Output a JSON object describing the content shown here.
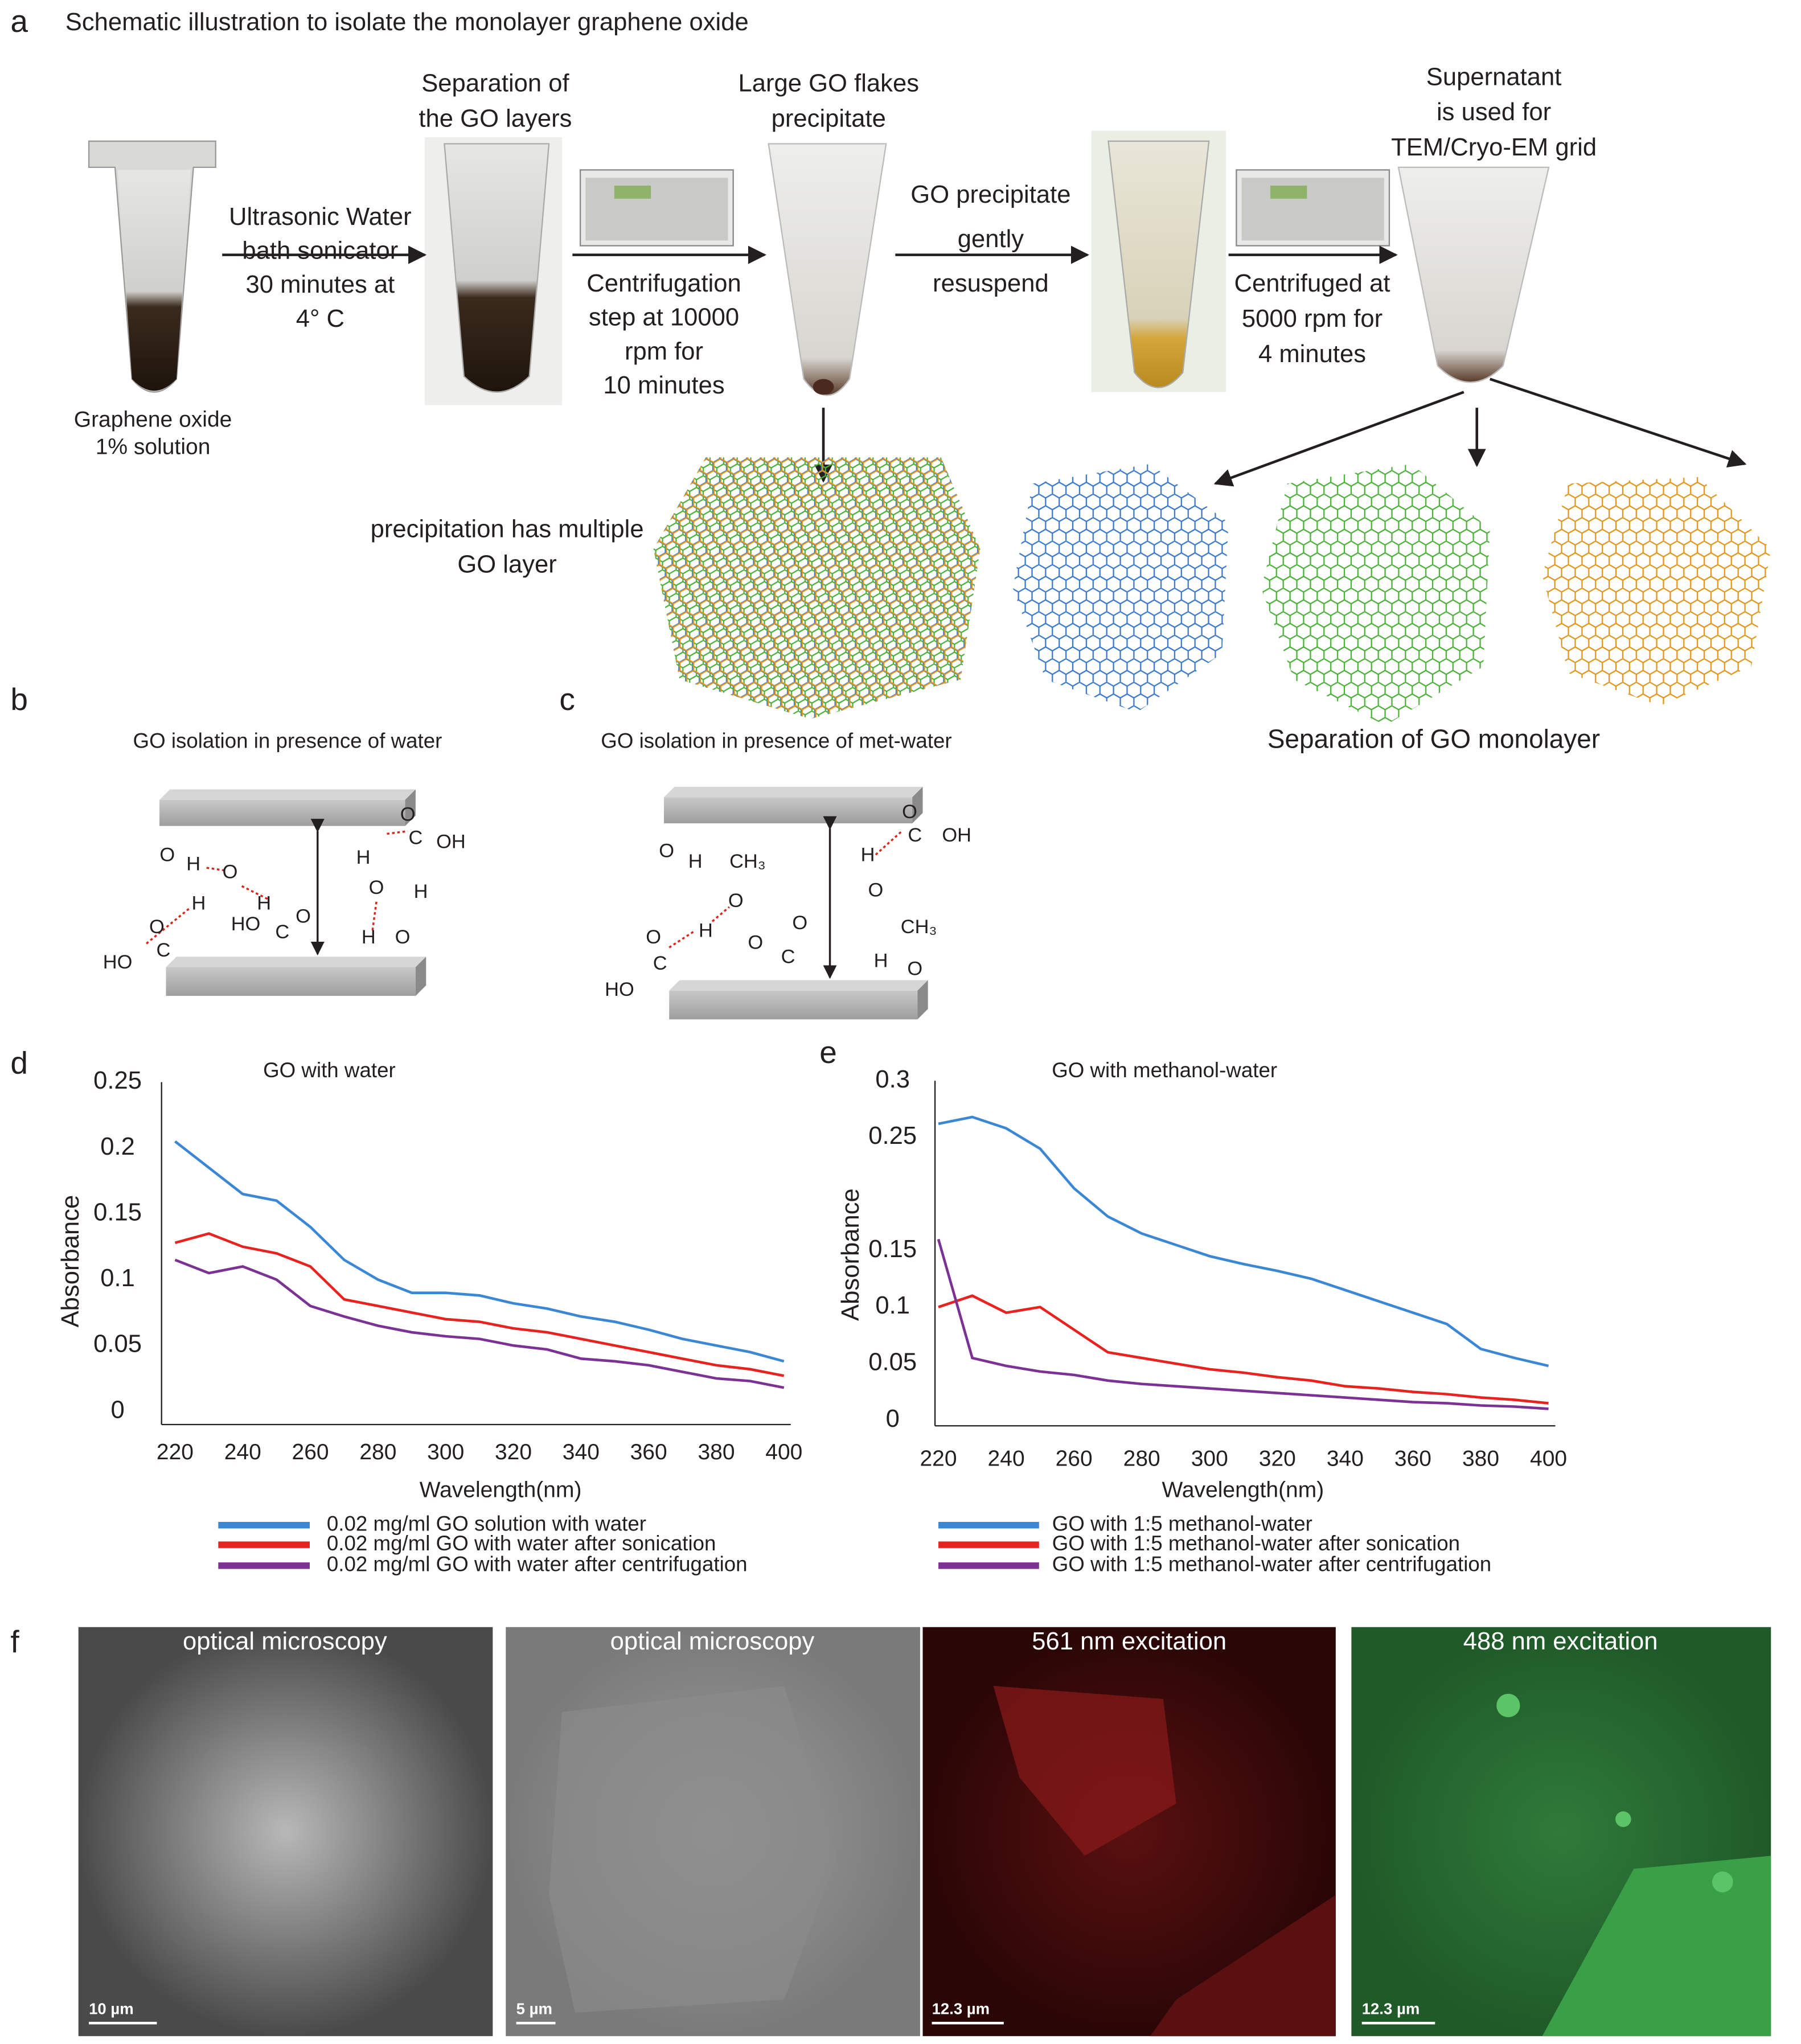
{
  "panel_labels": [
    "a",
    "b",
    "c",
    "d",
    "e",
    "f"
  ],
  "a": {
    "title": "Schematic illustration to isolate the monolayer graphene oxide",
    "tube1_caption": [
      "Graphene oxide",
      "1% solution"
    ],
    "step1": [
      "Ultrasonic Water",
      "bath sonicator",
      "30 minutes at",
      "4° C"
    ],
    "tube2_caption": [
      "Separation of",
      "the GO layers"
    ],
    "step2": [
      "Centrifugation",
      "step at 10000",
      "rpm for",
      "10 minutes"
    ],
    "tube3_caption": [
      "Large GO flakes",
      "precipitate"
    ],
    "step3": [
      "GO precipitate",
      "gently",
      "resuspend"
    ],
    "step4": [
      "Centrifuged at",
      "5000 rpm for",
      "4 minutes"
    ],
    "tube5_caption": [
      "Supernatant",
      "is used for",
      "TEM/Cryo-EM grid"
    ],
    "multilayer_caption": [
      "precipitation has multiple",
      "GO layer"
    ],
    "monolayer_caption": "Separation of GO monolayer"
  },
  "b": {
    "title": "GO isolation in presence of water",
    "atoms": [
      "O",
      "H",
      "O",
      "H",
      "H",
      "HO",
      "C",
      "O",
      "C",
      "O",
      "HO",
      "C",
      "O",
      "OH",
      "H",
      "O",
      "H",
      "H",
      "O"
    ]
  },
  "c": {
    "title": "GO isolation in presence of met-water",
    "atoms": [
      "O",
      "H",
      "CH₃",
      "O",
      "H",
      "O",
      "C",
      "O",
      "C",
      "O",
      "HO",
      "C",
      "O",
      "OH",
      "H",
      "O",
      "CH₃",
      "H",
      "O"
    ]
  },
  "chart_data": [
    {
      "type": "line",
      "title": "GO with water",
      "xlabel": "Wavelength(nm)",
      "ylabel": "Absorbance",
      "x": [
        220,
        230,
        240,
        250,
        260,
        270,
        280,
        290,
        300,
        310,
        320,
        330,
        340,
        350,
        360,
        370,
        380,
        390,
        400
      ],
      "xlim": [
        216,
        402
      ],
      "xticks": [
        220,
        240,
        260,
        280,
        300,
        320,
        340,
        360,
        380,
        400
      ],
      "ylim": [
        -0.01,
        0.25
      ],
      "yticks": [
        0,
        0.05,
        0.1,
        0.15,
        0.2,
        0.25
      ],
      "series": [
        {
          "name": "0.02 mg/ml GO solution with water",
          "color": "#3a87d6",
          "values": [
            0.205,
            0.185,
            0.165,
            0.16,
            0.14,
            0.115,
            0.1,
            0.09,
            0.09,
            0.088,
            0.082,
            0.078,
            0.072,
            0.068,
            0.062,
            0.055,
            0.05,
            0.045,
            0.038
          ]
        },
        {
          "name": "0.02 mg/ml GO with water after sonication",
          "color": "#e8231f",
          "values": [
            0.128,
            0.135,
            0.125,
            0.12,
            0.11,
            0.085,
            0.08,
            0.075,
            0.07,
            0.068,
            0.063,
            0.06,
            0.055,
            0.05,
            0.045,
            0.04,
            0.035,
            0.032,
            0.027
          ]
        },
        {
          "name": "0.02 mg/ml GO with water after centrifugation",
          "color": "#7b3294",
          "values": [
            0.115,
            0.105,
            0.11,
            0.1,
            0.08,
            0.072,
            0.065,
            0.06,
            0.057,
            0.055,
            0.05,
            0.047,
            0.04,
            0.038,
            0.035,
            0.03,
            0.025,
            0.023,
            0.018
          ]
        }
      ]
    },
    {
      "type": "line",
      "title": "GO with methanol-water",
      "xlabel": "Wavelength(nm)",
      "ylabel": "Absorbance",
      "x": [
        220,
        230,
        240,
        250,
        260,
        270,
        280,
        290,
        300,
        310,
        320,
        330,
        340,
        350,
        360,
        370,
        380,
        390,
        400
      ],
      "xlim": [
        219,
        402
      ],
      "xticks": [
        220,
        240,
        260,
        280,
        300,
        320,
        340,
        360,
        380,
        400
      ],
      "ylim": [
        -0.005,
        0.3
      ],
      "yticks": [
        0,
        0.05,
        0.1,
        0.15,
        0.25,
        0.3
      ],
      "series": [
        {
          "name": "GO with 1:5 methanol-water",
          "color": "#3a87d6",
          "values": [
            0.262,
            0.268,
            0.258,
            0.24,
            0.205,
            0.18,
            0.165,
            0.155,
            0.145,
            0.138,
            0.132,
            0.125,
            0.115,
            0.105,
            0.095,
            0.085,
            0.063,
            0.055,
            0.048
          ]
        },
        {
          "name": "GO with 1:5 methanol-water after sonication",
          "color": "#e8231f",
          "values": [
            0.1,
            0.11,
            0.095,
            0.1,
            0.08,
            0.06,
            0.055,
            0.05,
            0.045,
            0.042,
            0.038,
            0.035,
            0.03,
            0.028,
            0.025,
            0.023,
            0.02,
            0.018,
            0.015
          ]
        },
        {
          "name": "GO with 1:5 methanol-water after centrifugation",
          "color": "#7b3294",
          "values": [
            0.16,
            0.055,
            0.048,
            0.043,
            0.04,
            0.035,
            0.032,
            0.03,
            0.028,
            0.026,
            0.024,
            0.022,
            0.02,
            0.018,
            0.016,
            0.015,
            0.013,
            0.012,
            0.01
          ]
        }
      ]
    }
  ],
  "f": {
    "images": [
      {
        "title": "optical microscopy",
        "scale": "10 µm"
      },
      {
        "title": "optical microscopy",
        "scale": "5 µm"
      },
      {
        "title": "561 nm excitation",
        "scale": "12.3 µm"
      },
      {
        "title": "488 nm excitation",
        "scale": "12.3 µm"
      }
    ]
  }
}
